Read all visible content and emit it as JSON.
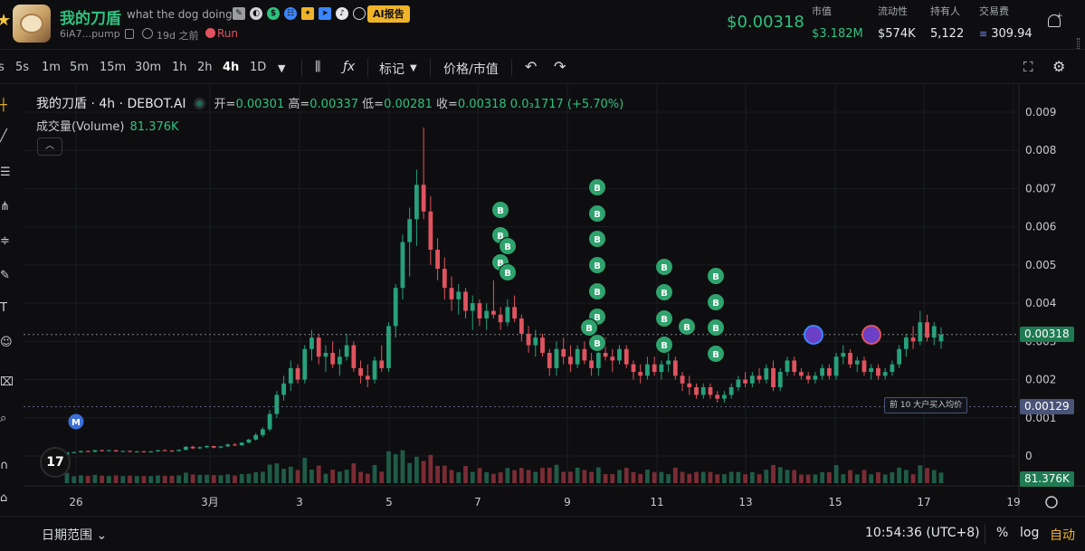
{
  "header": {
    "token_name": "我的刀盾",
    "description": "what the dog doing?",
    "ai_report": "AI报告",
    "address": "6iA7...pump",
    "age": "19d 之前",
    "run_label": "Run",
    "price": "$0.00318",
    "stats": [
      {
        "label": "市值",
        "value": "$3.182M",
        "color": "green"
      },
      {
        "label": "流动性",
        "value": "$574K",
        "color": "white"
      },
      {
        "label": "持有人",
        "value": "5,122",
        "color": "white"
      },
      {
        "label": "交易费",
        "value": "309.94",
        "color": "white"
      }
    ]
  },
  "toolbar": {
    "timeframes": [
      "s",
      "5s",
      "1m",
      "5m",
      "15m",
      "30m",
      "1h",
      "2h",
      "4h",
      "1D"
    ],
    "active_timeframe": "4h",
    "marks_label": "标记",
    "price_mcap_label": "价格/市值"
  },
  "legend": {
    "title": "我的刀盾 · 4h · DEBOT.AI",
    "open_label": "开=",
    "open": "0.00301",
    "high_label": "高=",
    "high": "0.00337",
    "low_label": "低=",
    "low": "0.00281",
    "close_label": "收=",
    "close": "0.00318",
    "change": "0.0₃1717 (+5.70%)",
    "volume_label": "成交量(Volume)",
    "volume_value": "81.376K"
  },
  "price_axis": {
    "ticks": [
      "0.009",
      "0.008",
      "0.007",
      "0.006",
      "0.005",
      "0.004",
      "0.003",
      "0.002",
      "0.001",
      "0"
    ],
    "current_price_tag": "0.00318",
    "avg_price_tag": "0.00129",
    "avg_price_label": "前 10 大户买入均价",
    "volume_tag": "81.376K"
  },
  "time_axis": {
    "ticks": [
      "26",
      "3月",
      "3",
      "5",
      "7",
      "9",
      "11",
      "13",
      "15",
      "17",
      "19"
    ]
  },
  "chart_data": {
    "type": "candlestick",
    "interval": "4h",
    "ylim": [
      0,
      0.0095
    ],
    "price_line": 0.00318,
    "avg_buy_line": 0.00129,
    "markers": {
      "buy_label": "B",
      "migration_label": "M"
    },
    "candles": [
      [
        1e-05,
        0.0001,
        1e-05,
        0.0001
      ],
      [
        0.0001,
        0.00012,
        8e-05,
        0.0001
      ],
      [
        0.0001,
        0.00014,
        9e-05,
        0.00013
      ],
      [
        0.00013,
        0.00014,
        0.0001,
        0.00011
      ],
      [
        0.00011,
        0.00016,
        0.0001,
        0.00015
      ],
      [
        0.00015,
        0.00017,
        0.00012,
        0.00013
      ],
      [
        0.00013,
        0.00016,
        0.00012,
        0.00015
      ],
      [
        0.00015,
        0.00016,
        0.00011,
        0.00012
      ],
      [
        0.00012,
        0.00014,
        0.0001,
        0.00013
      ],
      [
        0.00013,
        0.00015,
        0.0001,
        0.00011
      ],
      [
        0.00011,
        0.00013,
        9e-05,
        0.00012
      ],
      [
        0.00012,
        0.00014,
        0.0001,
        0.00011
      ],
      [
        0.00011,
        0.00013,
        9e-05,
        0.00012
      ],
      [
        0.00012,
        0.00016,
        0.00011,
        0.00015
      ],
      [
        0.00015,
        0.00018,
        0.00013,
        0.00014
      ],
      [
        0.00014,
        0.00016,
        0.00011,
        0.00013
      ],
      [
        0.00013,
        0.00017,
        0.00012,
        0.00016
      ],
      [
        0.00016,
        0.00026,
        0.00015,
        0.00024
      ],
      [
        0.00024,
        0.00027,
        0.00018,
        0.0002
      ],
      [
        0.0002,
        0.00025,
        0.00018,
        0.00023
      ],
      [
        0.00023,
        0.00028,
        0.0002,
        0.00026
      ],
      [
        0.00026,
        0.00027,
        0.0002,
        0.00022
      ],
      [
        0.00022,
        0.00026,
        0.0002,
        0.00025
      ],
      [
        0.00025,
        0.00033,
        0.00024,
        0.0003
      ],
      [
        0.0003,
        0.00034,
        0.00026,
        0.00028
      ],
      [
        0.00028,
        0.00036,
        0.00027,
        0.00035
      ],
      [
        0.00035,
        0.00045,
        0.00033,
        0.00043
      ],
      [
        0.00043,
        0.0006,
        0.0004,
        0.00055
      ],
      [
        0.00055,
        0.00075,
        0.0005,
        0.0007
      ],
      [
        0.0007,
        0.0012,
        0.00065,
        0.0011
      ],
      [
        0.0011,
        0.0017,
        0.001,
        0.0016
      ],
      [
        0.0016,
        0.0021,
        0.00145,
        0.0019
      ],
      [
        0.0019,
        0.0025,
        0.0017,
        0.0023
      ],
      [
        0.0023,
        0.0024,
        0.0019,
        0.002
      ],
      [
        0.002,
        0.0029,
        0.0019,
        0.0028
      ],
      [
        0.0028,
        0.0033,
        0.0025,
        0.0031
      ],
      [
        0.0031,
        0.0032,
        0.0024,
        0.0026
      ],
      [
        0.0026,
        0.0029,
        0.0022,
        0.0027
      ],
      [
        0.0027,
        0.003,
        0.0023,
        0.0024
      ],
      [
        0.0024,
        0.0028,
        0.0021,
        0.0026
      ],
      [
        0.0026,
        0.0032,
        0.0025,
        0.0029
      ],
      [
        0.0029,
        0.003,
        0.0022,
        0.0023
      ],
      [
        0.0023,
        0.0025,
        0.0019,
        0.0021
      ],
      [
        0.0021,
        0.0024,
        0.0018,
        0.002
      ],
      [
        0.002,
        0.0026,
        0.0019,
        0.0025
      ],
      [
        0.0025,
        0.0029,
        0.0022,
        0.0023
      ],
      [
        0.0023,
        0.0035,
        0.0022,
        0.0034
      ],
      [
        0.0034,
        0.0045,
        0.0031,
        0.0044
      ],
      [
        0.0044,
        0.0058,
        0.0041,
        0.0056
      ],
      [
        0.0056,
        0.0065,
        0.0047,
        0.0062
      ],
      [
        0.0062,
        0.0075,
        0.0055,
        0.0071
      ],
      [
        0.0071,
        0.0086,
        0.0062,
        0.0064
      ],
      [
        0.0064,
        0.0068,
        0.005,
        0.0054
      ],
      [
        0.0054,
        0.0057,
        0.0046,
        0.0049
      ],
      [
        0.0049,
        0.0052,
        0.0041,
        0.0044
      ],
      [
        0.0044,
        0.0047,
        0.0038,
        0.0041
      ],
      [
        0.0041,
        0.0045,
        0.0037,
        0.0043
      ],
      [
        0.0043,
        0.0044,
        0.0036,
        0.0038
      ],
      [
        0.0038,
        0.0042,
        0.0033,
        0.004
      ],
      [
        0.004,
        0.0041,
        0.0034,
        0.0036
      ],
      [
        0.0036,
        0.004,
        0.0033,
        0.0038
      ],
      [
        0.0038,
        0.0046,
        0.0036,
        0.0037
      ],
      [
        0.0037,
        0.0039,
        0.0033,
        0.0035
      ],
      [
        0.0035,
        0.0041,
        0.0034,
        0.0039
      ],
      [
        0.0039,
        0.0042,
        0.0035,
        0.0036
      ],
      [
        0.0036,
        0.0037,
        0.003,
        0.0032
      ],
      [
        0.0032,
        0.0034,
        0.0027,
        0.0029
      ],
      [
        0.0029,
        0.0033,
        0.0026,
        0.0031
      ],
      [
        0.0031,
        0.0032,
        0.0026,
        0.0027
      ],
      [
        0.0027,
        0.0028,
        0.0021,
        0.0023
      ],
      [
        0.0023,
        0.003,
        0.0021,
        0.0028
      ],
      [
        0.0028,
        0.0031,
        0.0024,
        0.0026
      ],
      [
        0.0026,
        0.0029,
        0.0022,
        0.0024
      ],
      [
        0.0024,
        0.0029,
        0.0023,
        0.0028
      ],
      [
        0.0028,
        0.003,
        0.0024,
        0.0025
      ],
      [
        0.0025,
        0.0027,
        0.0021,
        0.0023
      ],
      [
        0.0023,
        0.0028,
        0.0021,
        0.0027
      ],
      [
        0.0027,
        0.0031,
        0.0025,
        0.0026
      ],
      [
        0.0026,
        0.0028,
        0.0022,
        0.0025
      ],
      [
        0.0025,
        0.0029,
        0.0024,
        0.0028
      ],
      [
        0.0028,
        0.0029,
        0.0023,
        0.0024
      ],
      [
        0.0024,
        0.0025,
        0.002,
        0.0022
      ],
      [
        0.0022,
        0.0024,
        0.0019,
        0.0021
      ],
      [
        0.0021,
        0.0026,
        0.002,
        0.0024
      ],
      [
        0.0024,
        0.0026,
        0.0021,
        0.0022
      ],
      [
        0.0022,
        0.0025,
        0.002,
        0.0024
      ],
      [
        0.0024,
        0.0027,
        0.0022,
        0.0025
      ],
      [
        0.0025,
        0.0026,
        0.002,
        0.0021
      ],
      [
        0.0021,
        0.0022,
        0.0017,
        0.0019
      ],
      [
        0.0019,
        0.0021,
        0.0016,
        0.0018
      ],
      [
        0.0018,
        0.0019,
        0.0015,
        0.0016
      ],
      [
        0.0016,
        0.0019,
        0.0015,
        0.0018
      ],
      [
        0.0018,
        0.0019,
        0.0015,
        0.0016
      ],
      [
        0.0016,
        0.0017,
        0.0014,
        0.0015
      ],
      [
        0.0015,
        0.0017,
        0.0014,
        0.0016
      ],
      [
        0.0016,
        0.0019,
        0.0015,
        0.0018
      ],
      [
        0.0018,
        0.0021,
        0.0017,
        0.002
      ],
      [
        0.002,
        0.0022,
        0.0018,
        0.0019
      ],
      [
        0.0019,
        0.0022,
        0.0018,
        0.0021
      ],
      [
        0.0021,
        0.0023,
        0.0019,
        0.002
      ],
      [
        0.002,
        0.0024,
        0.0019,
        0.0023
      ],
      [
        0.0023,
        0.0025,
        0.0017,
        0.0018
      ],
      [
        0.0018,
        0.0023,
        0.0017,
        0.0022
      ],
      [
        0.0022,
        0.0026,
        0.0021,
        0.0025
      ],
      [
        0.0025,
        0.0026,
        0.0021,
        0.0022
      ],
      [
        0.0022,
        0.0023,
        0.002,
        0.0021
      ],
      [
        0.0021,
        0.0022,
        0.0019,
        0.002
      ],
      [
        0.002,
        0.0022,
        0.0019,
        0.0021
      ],
      [
        0.0021,
        0.0024,
        0.002,
        0.0023
      ],
      [
        0.0023,
        0.0024,
        0.002,
        0.0021
      ],
      [
        0.0021,
        0.0027,
        0.002,
        0.0026
      ],
      [
        0.0026,
        0.0029,
        0.0024,
        0.0027
      ],
      [
        0.0027,
        0.0028,
        0.0023,
        0.0024
      ],
      [
        0.0024,
        0.0026,
        0.0022,
        0.0025
      ],
      [
        0.0025,
        0.0026,
        0.0021,
        0.0022
      ],
      [
        0.0022,
        0.0024,
        0.002,
        0.0023
      ],
      [
        0.0023,
        0.0024,
        0.002,
        0.0021
      ],
      [
        0.0021,
        0.0023,
        0.002,
        0.0022
      ],
      [
        0.0022,
        0.0025,
        0.0021,
        0.0024
      ],
      [
        0.0024,
        0.0029,
        0.0023,
        0.0028
      ],
      [
        0.0028,
        0.0032,
        0.0026,
        0.0031
      ],
      [
        0.0031,
        0.0034,
        0.0028,
        0.003
      ],
      [
        0.003,
        0.0038,
        0.0029,
        0.0035
      ],
      [
        0.0035,
        0.0037,
        0.003,
        0.0031
      ],
      [
        0.0031,
        0.0035,
        0.0029,
        0.0034
      ],
      [
        0.003,
        0.00337,
        0.00281,
        0.00318
      ]
    ],
    "volume_max": 100
  }
}
